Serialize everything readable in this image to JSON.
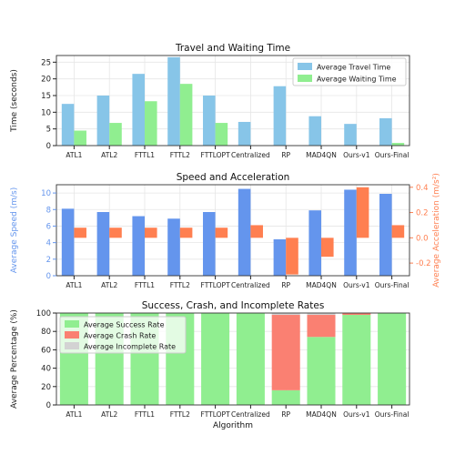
{
  "chart_data": [
    {
      "type": "bar",
      "title": "Travel and Waiting Time",
      "xlabel": "",
      "ylabel": "Time (seconds)",
      "ylim": [
        0,
        27
      ],
      "yticks": [
        0,
        5,
        10,
        15,
        20,
        25
      ],
      "grid": true,
      "legend_position": "top-right",
      "categories": [
        "ATL1",
        "ATL2",
        "FTTL1",
        "FTTL2",
        "FTTLOPT",
        "Centralized",
        "RP",
        "MAD4QN",
        "Ours-v1",
        "Ours-Final"
      ],
      "series": [
        {
          "name": "Average Travel Time",
          "color": "#87c5e8",
          "values": [
            12.5,
            15.0,
            21.5,
            26.5,
            15.0,
            7.1,
            17.8,
            8.8,
            6.5,
            8.2
          ]
        },
        {
          "name": "Average Waiting Time",
          "color": "#90ee90",
          "values": [
            4.5,
            6.8,
            13.3,
            18.5,
            6.8,
            0,
            0,
            0,
            0,
            0.8
          ]
        }
      ]
    },
    {
      "type": "bar",
      "title": "Speed and Acceleration",
      "xlabel": "",
      "ylabel": "Average Speed (m/s)",
      "ylabel_right": "Average Acceleration (m/s²)",
      "ylim": [
        0,
        11
      ],
      "yticks": [
        0,
        2,
        4,
        6,
        8,
        10
      ],
      "ylim_right": [
        -0.3,
        0.42
      ],
      "yticks_right": [
        -0.2,
        0.0,
        0.2,
        0.4
      ],
      "grid": true,
      "categories": [
        "ATL1",
        "ATL2",
        "FTTL1",
        "FTTL2",
        "FTTLOPT",
        "Centralized",
        "RP",
        "MAD4QN",
        "Ours-v1",
        "Ours-Final"
      ],
      "series": [
        {
          "name": "Average Speed",
          "axis": "left",
          "color": "#6495ed",
          "values": [
            8.1,
            7.7,
            7.2,
            6.9,
            7.7,
            10.5,
            4.4,
            7.9,
            10.4,
            9.9
          ]
        },
        {
          "name": "Average Acceleration",
          "axis": "right",
          "color": "#ff7f50",
          "values": [
            0.08,
            0.08,
            0.08,
            0.08,
            0.08,
            0.1,
            -0.29,
            -0.15,
            0.4,
            0.1
          ]
        }
      ]
    },
    {
      "type": "bar",
      "stacked": true,
      "title": "Success, Crash, and Incomplete Rates",
      "xlabel": "Algorithm",
      "ylabel": "Average Percentage (%)",
      "ylim": [
        0,
        100
      ],
      "yticks": [
        0,
        20,
        40,
        60,
        80,
        100
      ],
      "grid": true,
      "legend_position": "top-left",
      "categories": [
        "ATL1",
        "ATL2",
        "FTTL1",
        "FTTL2",
        "FTTLOPT",
        "Centralized",
        "RP",
        "MAD4QN",
        "Ours-v1",
        "Ours-Final"
      ],
      "series": [
        {
          "name": "Average Success Rate",
          "color": "#90ee90",
          "values": [
            100,
            100,
            100,
            100,
            100,
            100,
            16,
            74,
            98,
            100
          ]
        },
        {
          "name": "Average Crash Rate",
          "color": "#fa8072",
          "values": [
            0,
            0,
            0,
            0,
            0,
            0,
            82,
            24,
            2,
            0
          ]
        },
        {
          "name": "Average Incomplete Rate",
          "color": "#d3d3d3",
          "values": [
            0,
            0,
            0,
            0,
            0,
            0,
            2,
            2,
            0,
            0
          ]
        }
      ]
    }
  ]
}
